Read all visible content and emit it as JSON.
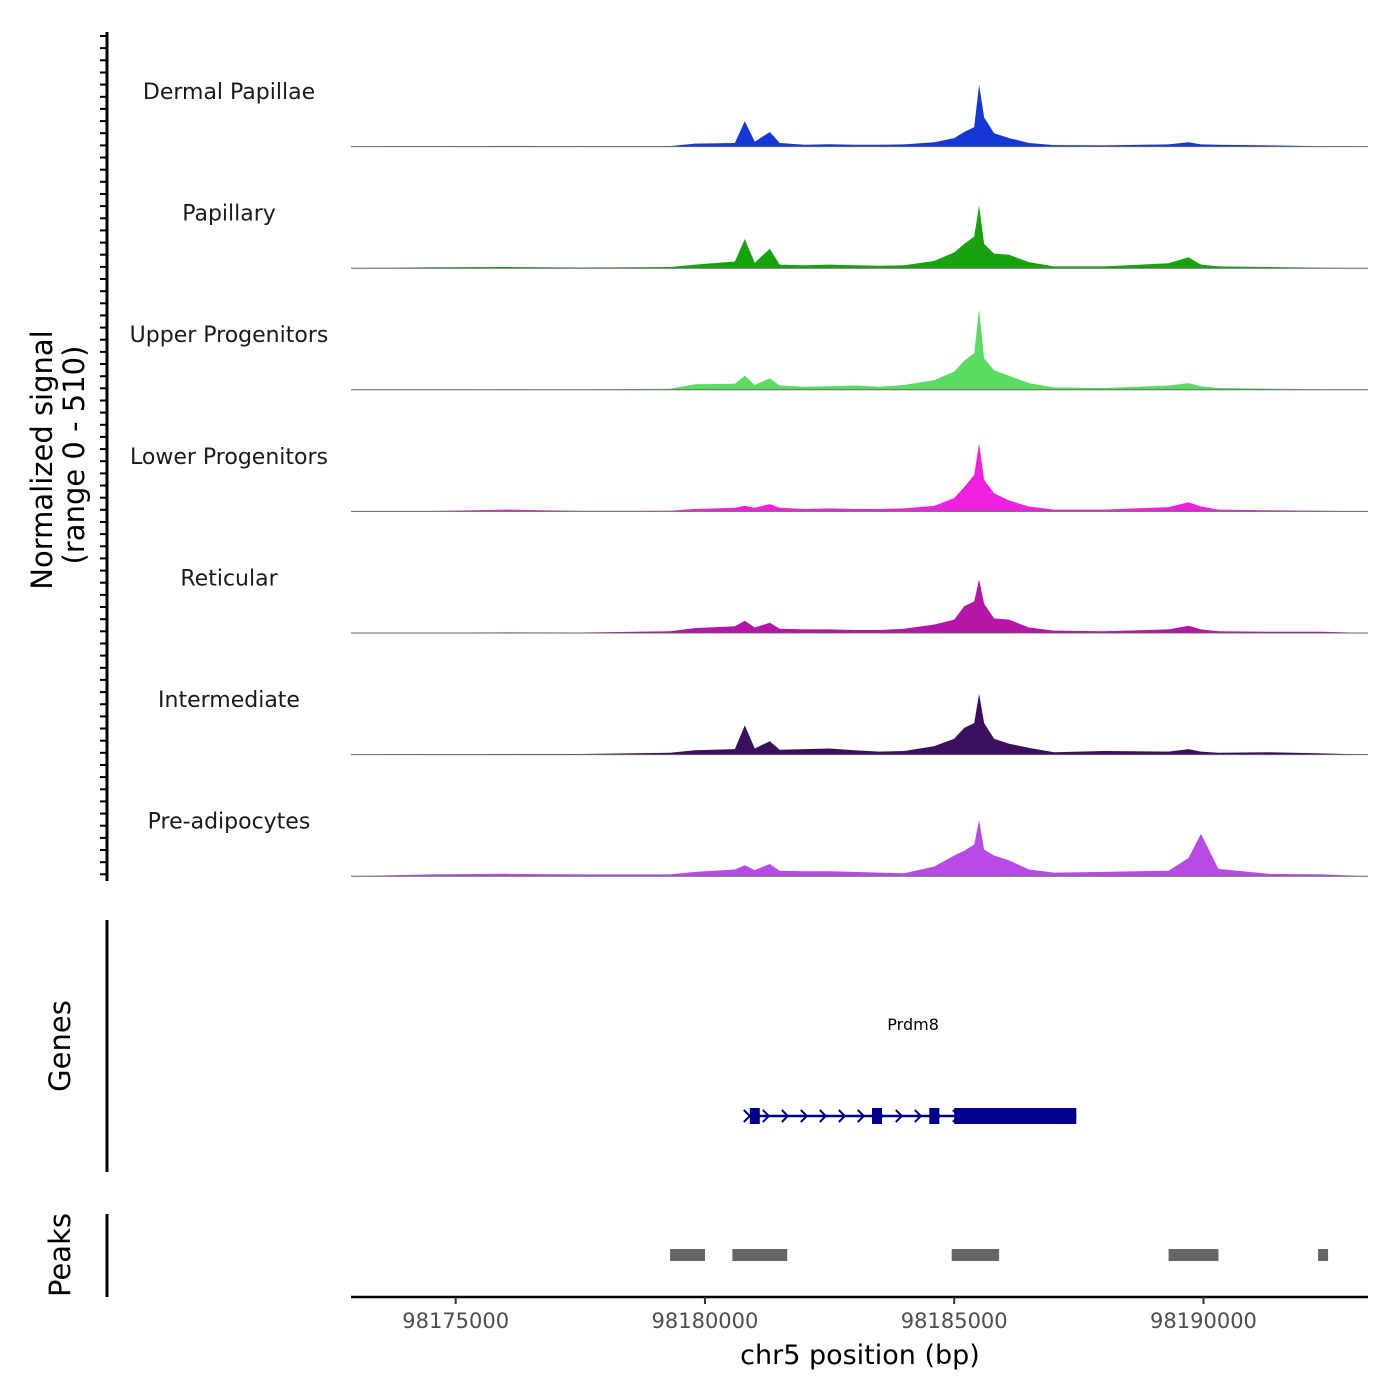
{
  "chart_data": {
    "type": "area",
    "title": "",
    "ylabel": "Normalized signal",
    "ylabel_range": "(range 0 - 510)",
    "ylim": [
      0,
      510
    ],
    "xlabel": "chr5 position (bp)",
    "xlim": [
      98172900,
      98193300
    ],
    "x_ticks": [
      98175000,
      98180000,
      98185000,
      98190000
    ],
    "x_tick_labels": [
      "98175000",
      "98180000",
      "98185000",
      "98190000"
    ],
    "x": [
      98172900,
      98174500,
      98176000,
      98177500,
      98179300,
      98179800,
      98180600,
      98180800,
      98181000,
      98181300,
      98181500,
      98182000,
      98182500,
      98183000,
      98183500,
      98184000,
      98184600,
      98185000,
      98185200,
      98185400,
      98185500,
      98185600,
      98185800,
      98186100,
      98186500,
      98187000,
      98188000,
      98189300,
      98189700,
      98189950,
      98190300,
      98191300,
      98192400,
      98193300
    ],
    "series": [
      {
        "name": "Dermal Papillae",
        "color": "#1537d6",
        "values": [
          0,
          2,
          5,
          3,
          4,
          25,
          30,
          210,
          40,
          120,
          30,
          15,
          20,
          15,
          15,
          18,
          35,
          70,
          120,
          160,
          510,
          240,
          110,
          70,
          30,
          12,
          10,
          18,
          35,
          18,
          15,
          10,
          3,
          0
        ]
      },
      {
        "name": "Papillary",
        "color": "#17a30d",
        "values": [
          0,
          8,
          10,
          6,
          10,
          30,
          55,
          240,
          45,
          160,
          30,
          25,
          30,
          25,
          20,
          25,
          60,
          130,
          200,
          260,
          520,
          200,
          120,
          110,
          50,
          15,
          15,
          40,
          90,
          30,
          15,
          10,
          3,
          0
        ]
      },
      {
        "name": "Upper Progenitors",
        "color": "#5adc62",
        "values": [
          0,
          2,
          4,
          3,
          8,
          45,
          50,
          115,
          40,
          95,
          35,
          25,
          30,
          35,
          25,
          40,
          80,
          150,
          240,
          300,
          660,
          260,
          160,
          115,
          55,
          20,
          15,
          35,
          55,
          30,
          15,
          10,
          3,
          0
        ]
      },
      {
        "name": "Lower Progenitors",
        "color": "#f020e0",
        "values": [
          0,
          3,
          15,
          4,
          5,
          20,
          30,
          45,
          30,
          60,
          30,
          20,
          25,
          20,
          20,
          25,
          45,
          110,
          200,
          300,
          560,
          260,
          150,
          90,
          40,
          15,
          15,
          35,
          75,
          40,
          15,
          10,
          5,
          0
        ]
      },
      {
        "name": "Reticular",
        "color": "#b516a8",
        "values": [
          0,
          3,
          5,
          4,
          15,
          40,
          55,
          100,
          45,
          85,
          35,
          30,
          30,
          25,
          25,
          35,
          70,
          110,
          220,
          260,
          440,
          240,
          120,
          110,
          45,
          20,
          15,
          30,
          60,
          30,
          15,
          10,
          10,
          0
        ]
      },
      {
        "name": "Intermediate",
        "color": "#3b0f5e",
        "values": [
          0,
          3,
          4,
          5,
          15,
          35,
          45,
          240,
          50,
          110,
          40,
          45,
          50,
          35,
          25,
          30,
          70,
          130,
          220,
          260,
          500,
          260,
          130,
          90,
          55,
          20,
          30,
          25,
          45,
          25,
          15,
          20,
          10,
          0
        ]
      },
      {
        "name": "Pre-adipocytes",
        "color": "#b84be6",
        "values": [
          0,
          15,
          20,
          15,
          15,
          35,
          55,
          90,
          50,
          100,
          45,
          40,
          40,
          35,
          30,
          25,
          80,
          170,
          210,
          260,
          460,
          220,
          170,
          130,
          55,
          30,
          35,
          45,
          150,
          350,
          60,
          20,
          15,
          0
        ]
      }
    ],
    "genes": [
      {
        "name": "Prdm8",
        "strand": "+",
        "start": 98180900,
        "end": 98187450,
        "exons": [
          [
            98180900,
            98181100
          ],
          [
            98183350,
            98183550
          ],
          [
            98184500,
            98184700
          ],
          [
            98185000,
            98187450
          ]
        ]
      }
    ],
    "peaks": [
      [
        98179300,
        98180000
      ],
      [
        98180550,
        98181650
      ],
      [
        98184950,
        98185900
      ],
      [
        98189300,
        98190300
      ],
      [
        98192300,
        98192500
      ]
    ],
    "panel_labels": {
      "genes": "Genes",
      "peaks": "Peaks"
    }
  }
}
